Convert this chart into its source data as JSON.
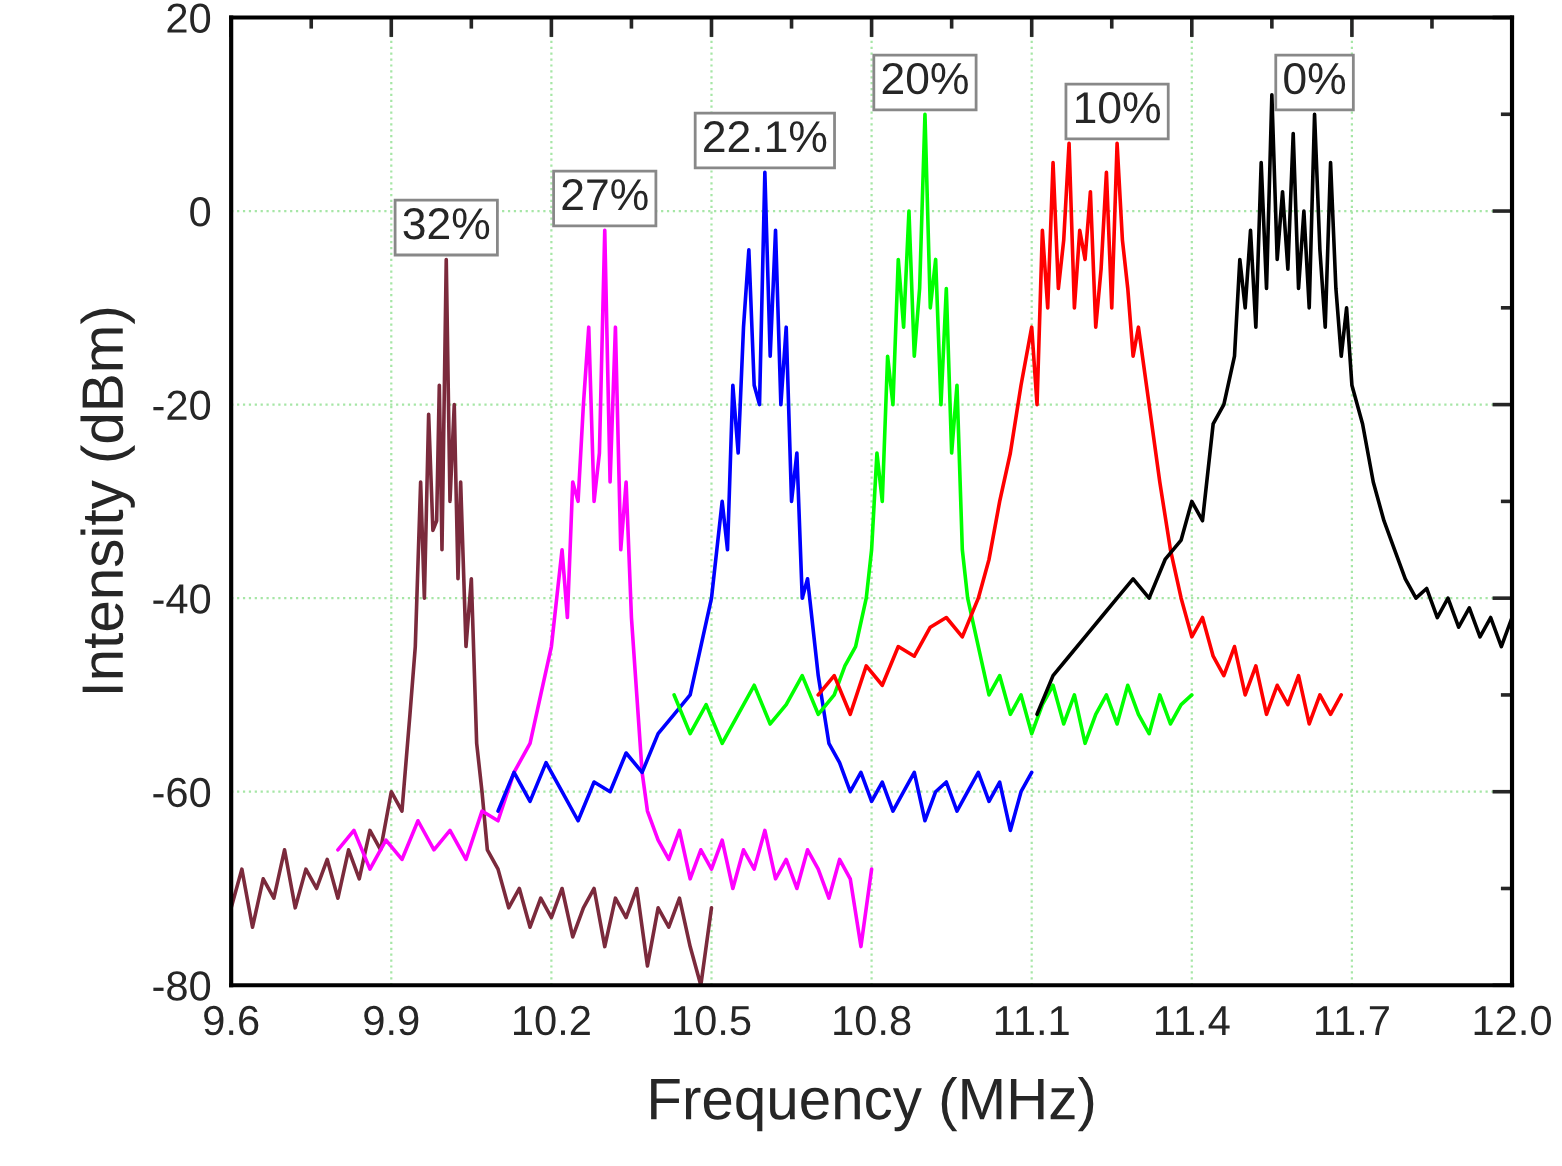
{
  "chart_data": {
    "type": "line",
    "xlabel": "Frequency (MHz)",
    "ylabel": "Intensity (dBm)",
    "xlim": [
      9.6,
      12.0
    ],
    "ylim": [
      -80,
      20
    ],
    "xticks": [
      9.6,
      {
        "value": 9.75,
        "label": null
      },
      9.9,
      {
        "value": 10.05,
        "label": null
      },
      10.2,
      {
        "value": 10.35,
        "label": null
      },
      10.5,
      {
        "value": 10.65,
        "label": null
      },
      10.8,
      {
        "value": 10.95,
        "label": null
      },
      11.1,
      {
        "value": 11.25,
        "label": null
      },
      11.4,
      {
        "value": 11.55,
        "label": null
      },
      11.7,
      {
        "value": 11.85,
        "label": null
      },
      {
        "value": 12.0,
        "label": "12.0"
      }
    ],
    "yticks": [
      -80,
      {
        "value": -70,
        "label": null
      },
      -60,
      {
        "value": -50,
        "label": null
      },
      -40,
      {
        "value": -30,
        "label": null
      },
      -20,
      {
        "value": -10,
        "label": null
      },
      0,
      {
        "value": 10,
        "label": null
      },
      20
    ],
    "grid": true,
    "annotations": [
      {
        "text": "32%",
        "x": 10.003,
        "y": -5
      },
      {
        "text": "27%",
        "x": 10.3,
        "y": -2
      },
      {
        "text": "22.1%",
        "x": 10.6,
        "y": 4
      },
      {
        "text": "20%",
        "x": 10.9,
        "y": 10
      },
      {
        "text": "10%",
        "x": 11.26,
        "y": 7
      },
      {
        "text": "0%",
        "x": 11.63,
        "y": 10
      }
    ],
    "series": [
      {
        "color": "#7b2a3c",
        "x": [
          9.6,
          9.62,
          9.64,
          9.66,
          9.68,
          9.7,
          9.72,
          9.74,
          9.76,
          9.78,
          9.8,
          9.82,
          9.84,
          9.86,
          9.88,
          9.9,
          9.92,
          9.935,
          9.945,
          9.955,
          9.962,
          9.97,
          9.978,
          9.985,
          9.99,
          9.995,
          10.003,
          10.01,
          10.018,
          10.025,
          10.03,
          10.04,
          10.05,
          10.06,
          10.07,
          10.08,
          10.1,
          10.12,
          10.14,
          10.16,
          10.18,
          10.2,
          10.22,
          10.24,
          10.26,
          10.28,
          10.3,
          10.32,
          10.34,
          10.36,
          10.38,
          10.4,
          10.42,
          10.44,
          10.46,
          10.48,
          10.5
        ],
        "values": [
          -72,
          -68,
          -74,
          -69,
          -71,
          -66,
          -72,
          -68,
          -70,
          -67,
          -71,
          -66,
          -69,
          -64,
          -66,
          -60,
          -62,
          -52,
          -45,
          -28,
          -40,
          -21,
          -33,
          -32,
          -18,
          -35,
          -5,
          -30,
          -20,
          -38,
          -28,
          -45,
          -38,
          -55,
          -60,
          -66,
          -68,
          -72,
          -70,
          -74,
          -71,
          -73,
          -70,
          -75,
          -72,
          -70,
          -76,
          -71,
          -73,
          -70,
          -78,
          -72,
          -74,
          -71,
          -76,
          -80,
          -72
        ]
      },
      {
        "color": "#ff00ff",
        "x": [
          9.8,
          9.83,
          9.86,
          9.89,
          9.92,
          9.95,
          9.98,
          10.01,
          10.04,
          10.07,
          10.1,
          10.13,
          10.16,
          10.18,
          10.2,
          10.21,
          10.22,
          10.23,
          10.24,
          10.25,
          10.26,
          10.27,
          10.28,
          10.29,
          10.3,
          10.31,
          10.32,
          10.33,
          10.34,
          10.35,
          10.36,
          10.37,
          10.38,
          10.4,
          10.42,
          10.44,
          10.46,
          10.48,
          10.5,
          10.52,
          10.54,
          10.56,
          10.58,
          10.6,
          10.62,
          10.64,
          10.66,
          10.68,
          10.7,
          10.72,
          10.74,
          10.76,
          10.78,
          10.8
        ],
        "values": [
          -66,
          -64,
          -68,
          -65,
          -67,
          -63,
          -66,
          -64,
          -67,
          -62,
          -63,
          -58,
          -55,
          -50,
          -45,
          -40,
          -35,
          -42,
          -28,
          -30,
          -20,
          -12,
          -30,
          -25,
          -2,
          -28,
          -12,
          -35,
          -28,
          -42,
          -50,
          -58,
          -62,
          -65,
          -67,
          -64,
          -69,
          -66,
          -68,
          -65,
          -70,
          -66,
          -68,
          -64,
          -69,
          -67,
          -70,
          -66,
          -68,
          -71,
          -67,
          -69,
          -76,
          -68
        ]
      },
      {
        "color": "#0000ff",
        "x": [
          10.1,
          10.13,
          10.16,
          10.19,
          10.22,
          10.25,
          10.28,
          10.31,
          10.34,
          10.37,
          10.4,
          10.43,
          10.46,
          10.48,
          10.5,
          10.52,
          10.53,
          10.54,
          10.55,
          10.56,
          10.57,
          10.58,
          10.59,
          10.6,
          10.61,
          10.62,
          10.63,
          10.64,
          10.65,
          10.66,
          10.67,
          10.68,
          10.7,
          10.72,
          10.74,
          10.76,
          10.78,
          10.8,
          10.82,
          10.84,
          10.86,
          10.88,
          10.9,
          10.92,
          10.94,
          10.96,
          10.98,
          11.0,
          11.02,
          11.04,
          11.06,
          11.08,
          11.1
        ],
        "values": [
          -62,
          -58,
          -61,
          -57,
          -60,
          -63,
          -59,
          -60,
          -56,
          -58,
          -54,
          -52,
          -50,
          -45,
          -40,
          -30,
          -35,
          -18,
          -25,
          -12,
          -4,
          -18,
          -20,
          4,
          -15,
          -2,
          -20,
          -12,
          -30,
          -25,
          -40,
          -38,
          -48,
          -55,
          -57,
          -60,
          -58,
          -61,
          -59,
          -62,
          -60,
          -58,
          -63,
          -60,
          -59,
          -62,
          -60,
          -58,
          -61,
          -59,
          -64,
          -60,
          -58
        ]
      },
      {
        "color": "#00ff00",
        "x": [
          10.43,
          10.46,
          10.49,
          10.52,
          10.55,
          10.58,
          10.61,
          10.64,
          10.67,
          10.7,
          10.73,
          10.75,
          10.77,
          10.79,
          10.8,
          10.81,
          10.82,
          10.83,
          10.84,
          10.85,
          10.86,
          10.87,
          10.88,
          10.89,
          10.9,
          10.91,
          10.92,
          10.93,
          10.94,
          10.95,
          10.96,
          10.97,
          10.98,
          11.0,
          11.02,
          11.04,
          11.06,
          11.08,
          11.1,
          11.12,
          11.14,
          11.16,
          11.18,
          11.2,
          11.22,
          11.24,
          11.26,
          11.28,
          11.3,
          11.32,
          11.34,
          11.36,
          11.38,
          11.4
        ],
        "values": [
          -50,
          -54,
          -51,
          -55,
          -52,
          -49,
          -53,
          -51,
          -48,
          -52,
          -50,
          -47,
          -45,
          -40,
          -35,
          -25,
          -30,
          -15,
          -20,
          -5,
          -12,
          0,
          -15,
          -8,
          10,
          -10,
          -5,
          -20,
          -8,
          -25,
          -18,
          -35,
          -40,
          -45,
          -50,
          -48,
          -52,
          -50,
          -54,
          -51,
          -49,
          -53,
          -50,
          -55,
          -52,
          -50,
          -53,
          -49,
          -52,
          -54,
          -50,
          -53,
          -51,
          -50
        ]
      },
      {
        "color": "#ff0000",
        "x": [
          10.7,
          10.73,
          10.76,
          10.79,
          10.82,
          10.85,
          10.88,
          10.91,
          10.94,
          10.97,
          11.0,
          11.02,
          11.04,
          11.06,
          11.08,
          11.1,
          11.11,
          11.12,
          11.13,
          11.14,
          11.15,
          11.16,
          11.17,
          11.18,
          11.19,
          11.2,
          11.21,
          11.22,
          11.23,
          11.24,
          11.25,
          11.26,
          11.27,
          11.28,
          11.29,
          11.3,
          11.32,
          11.34,
          11.36,
          11.38,
          11.4,
          11.42,
          11.44,
          11.46,
          11.48,
          11.5,
          11.52,
          11.54,
          11.56,
          11.58,
          11.6,
          11.62,
          11.64,
          11.66,
          11.68
        ],
        "values": [
          -50,
          -48,
          -52,
          -47,
          -49,
          -45,
          -46,
          -43,
          -42,
          -44,
          -40,
          -36,
          -30,
          -25,
          -18,
          -12,
          -20,
          -2,
          -10,
          5,
          -8,
          -3,
          7,
          -10,
          -2,
          -5,
          2,
          -12,
          -6,
          4,
          -10,
          7,
          -3,
          -8,
          -15,
          -12,
          -20,
          -28,
          -35,
          -40,
          -44,
          -42,
          -46,
          -48,
          -45,
          -50,
          -47,
          -52,
          -49,
          -51,
          -48,
          -53,
          -50,
          -52,
          -50
        ]
      },
      {
        "color": "#000000",
        "x": [
          11.11,
          11.14,
          11.17,
          11.2,
          11.23,
          11.26,
          11.29,
          11.32,
          11.35,
          11.38,
          11.4,
          11.42,
          11.44,
          11.46,
          11.48,
          11.49,
          11.5,
          11.51,
          11.52,
          11.53,
          11.54,
          11.55,
          11.56,
          11.57,
          11.58,
          11.59,
          11.6,
          11.61,
          11.62,
          11.63,
          11.64,
          11.65,
          11.66,
          11.67,
          11.68,
          11.69,
          11.7,
          11.72,
          11.74,
          11.76,
          11.78,
          11.8,
          11.82,
          11.84,
          11.86,
          11.88,
          11.9,
          11.92,
          11.94,
          11.96,
          11.98,
          12.0
        ],
        "values": [
          -52,
          -48,
          -46,
          -44,
          -42,
          -40,
          -38,
          -40,
          -36,
          -34,
          -30,
          -32,
          -22,
          -20,
          -15,
          -5,
          -10,
          -2,
          -12,
          5,
          -8,
          12,
          -5,
          2,
          -6,
          8,
          -8,
          0,
          -10,
          10,
          -4,
          -12,
          5,
          -8,
          -15,
          -10,
          -18,
          -22,
          -28,
          -32,
          -35,
          -38,
          -40,
          -39,
          -42,
          -40,
          -43,
          -41,
          -44,
          -42,
          -45,
          -42
        ]
      }
    ]
  }
}
